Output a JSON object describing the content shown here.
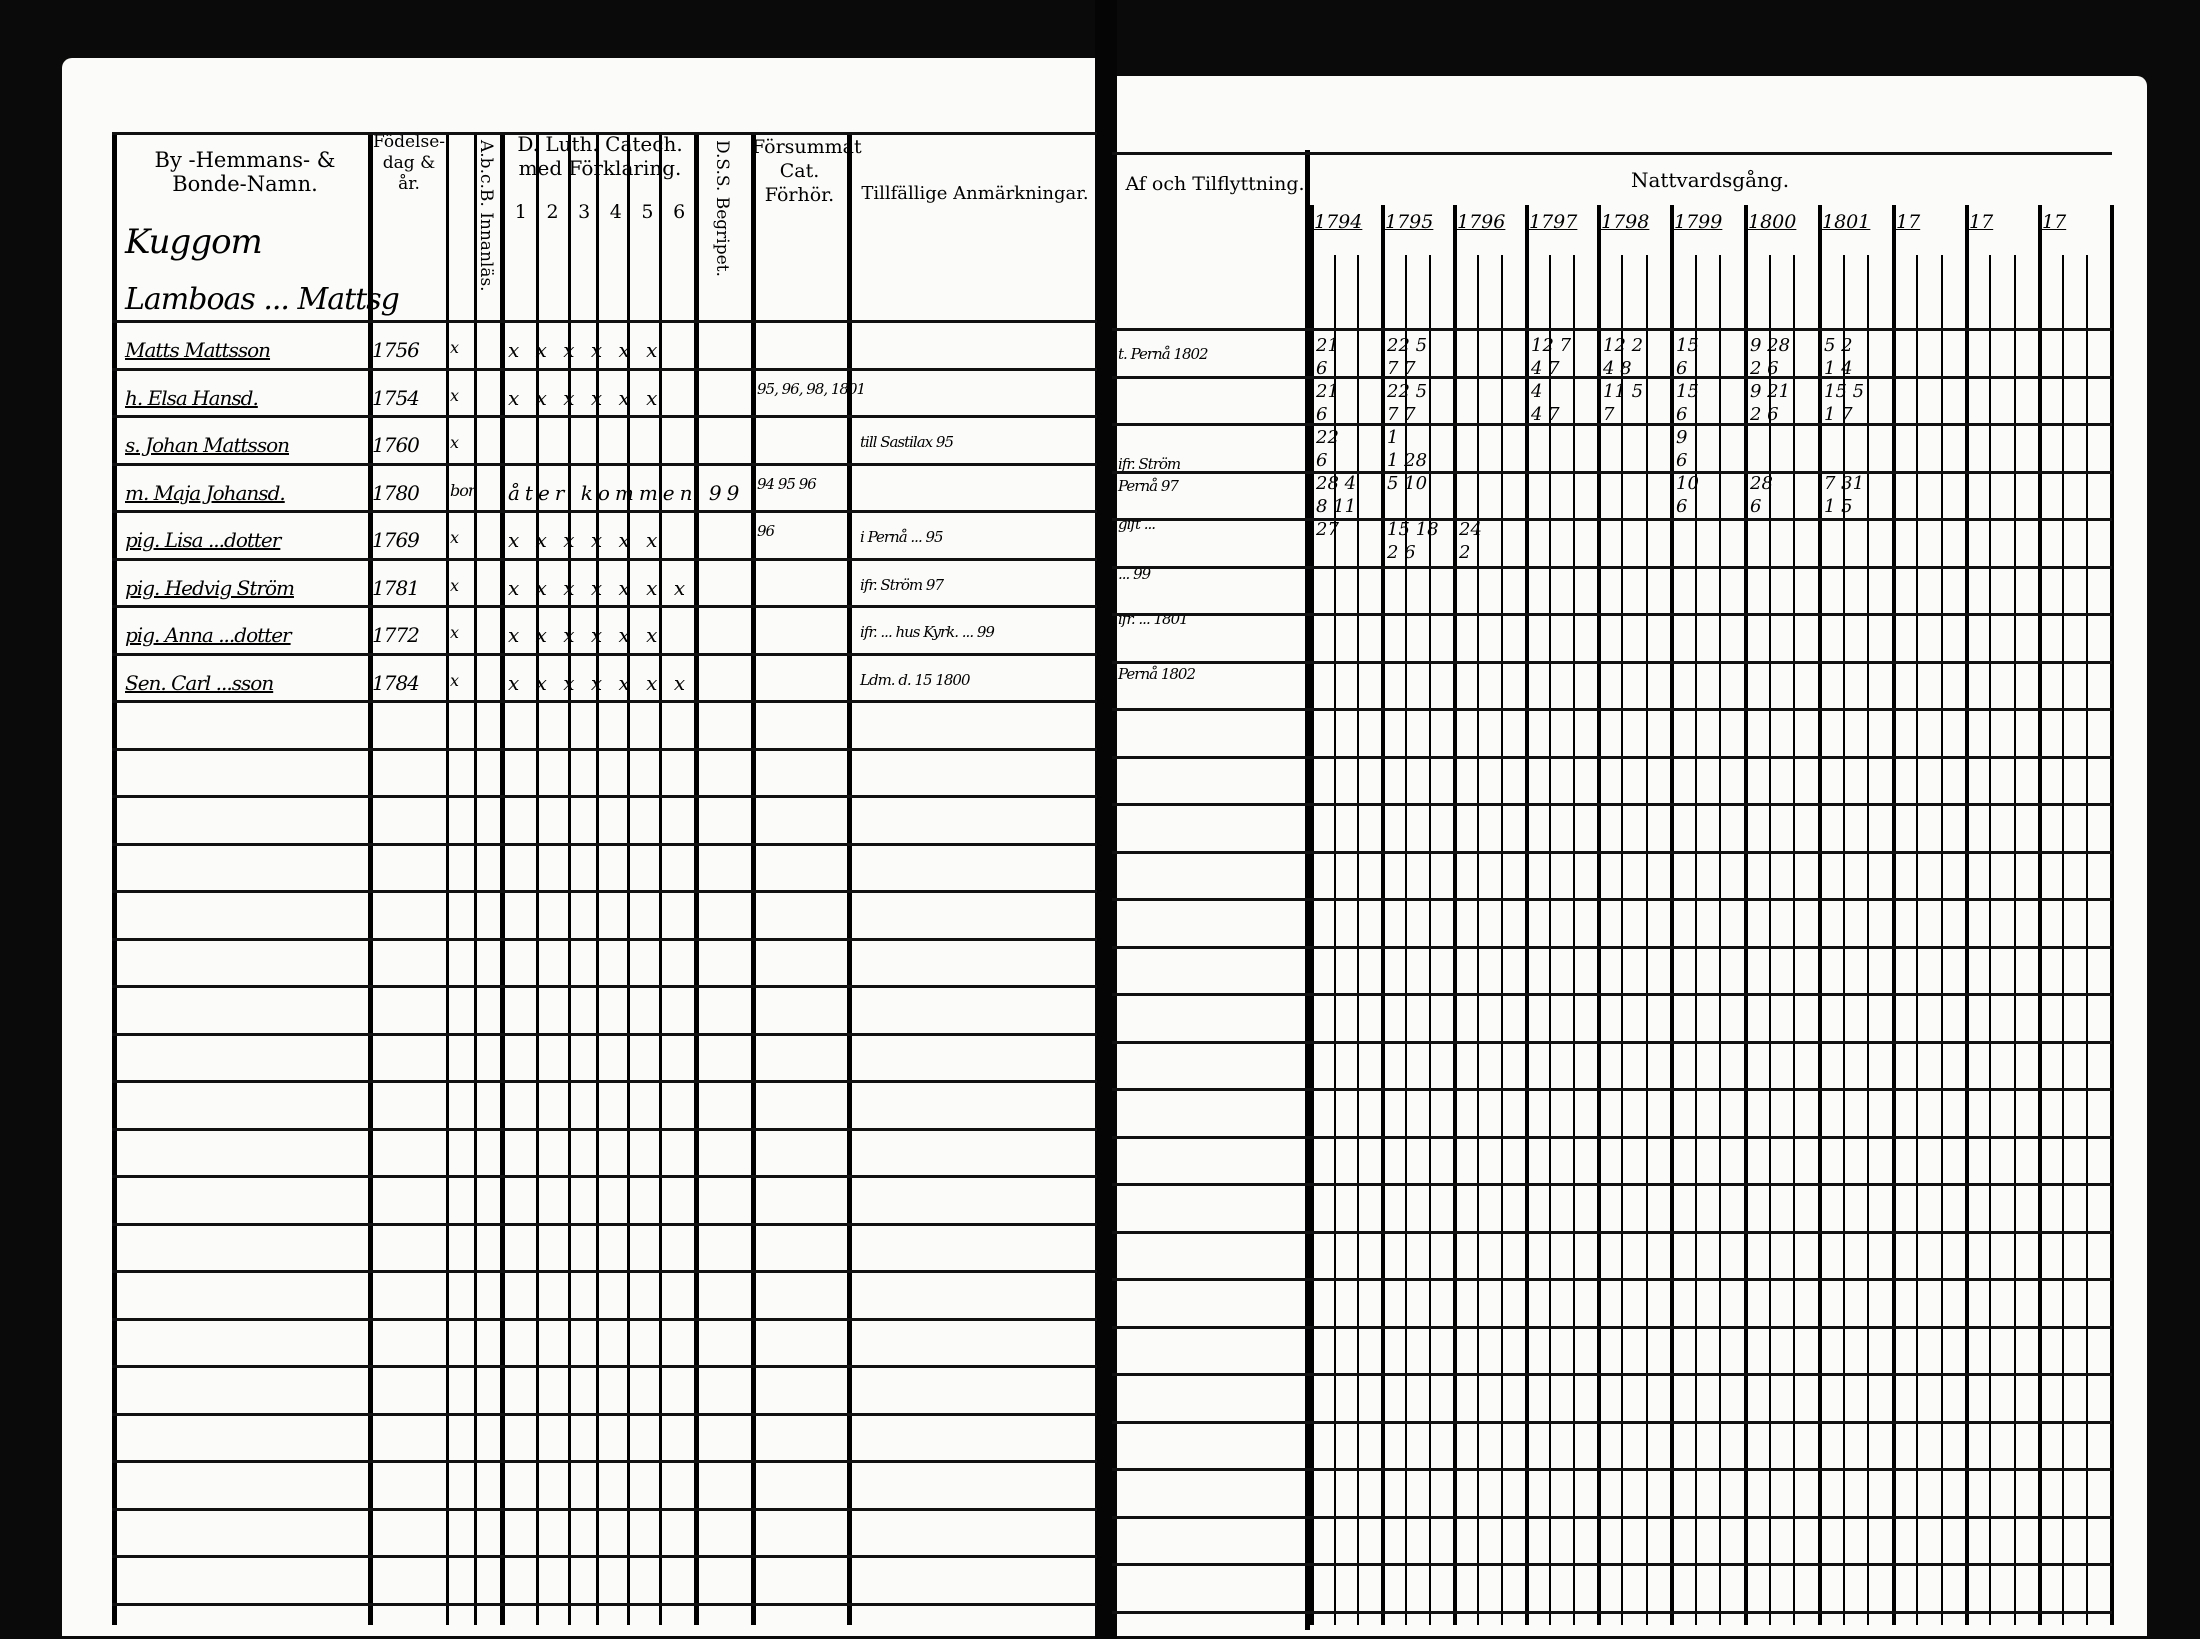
{
  "left_page": {
    "headers": {
      "name": "By -Hemmans- & Bonde-Namn.",
      "birth": "Födelse- dag & år.",
      "abc": "A.b.c.B. Innanläs.",
      "catechism": "D. Luth. Catech. med Förklaring.",
      "catechism_parts": [
        "1",
        "2",
        "3",
        "4",
        "5",
        "6"
      ],
      "dss": "D.S.S. Begripet.",
      "missed": "Försummat Cat. Förhör.",
      "remarks": "Tillfällige Anmärkningar."
    },
    "village": "Kuggom",
    "farm": "Lamboas ... Mattsg",
    "entries": [
      {
        "name": "Matts Mattsson",
        "born": "1756",
        "abc": "x",
        "cat": "x x x x x x",
        "missed": "",
        "remark": ""
      },
      {
        "name": "h. Elsa Hansd.",
        "born": "1754",
        "abc": "x",
        "cat": "x x x x x x",
        "missed": "95, 96, 98, 1801",
        "remark": ""
      },
      {
        "name": "s. Johan Mattsson",
        "born": "1760",
        "abc": "x",
        "cat": "",
        "missed": "",
        "remark": "till Sastilax 95"
      },
      {
        "name": "m. Maja Johansd.",
        "born": "1780",
        "abc": "bor",
        "cat": "åter kommen 99",
        "missed": "94 95 96",
        "remark": ""
      },
      {
        "name": "pig. Lisa ...dotter",
        "born": "1769",
        "abc": "x",
        "cat": "x x x x x x",
        "missed": "96",
        "remark": "i Pernå ... 95"
      },
      {
        "name": "pig. Hedvig Ström",
        "born": "1781",
        "abc": "x",
        "cat": "x x x x x x x",
        "missed": "",
        "remark": "ifr. Ström 97"
      },
      {
        "name": "pig. Anna ...dotter",
        "born": "1772",
        "abc": "x",
        "cat": "x x x x x x",
        "missed": "",
        "remark": "ifr. ... hus Kyrk. ... 99"
      },
      {
        "name": "Sen. Carl ...sson",
        "born": "1784",
        "abc": "x",
        "cat": "x x x x x x x",
        "missed": "",
        "remark": "Ldm. d. 15 1800"
      }
    ]
  },
  "right_page": {
    "headers": {
      "moving": "Af och Tilflyttning.",
      "communion": "Nattvardsgång.",
      "years": [
        "1794",
        "1795",
        "1796",
        "1797",
        "1798",
        "1799",
        "1800",
        "1801",
        "17",
        "17",
        "17"
      ]
    },
    "moving_entries": [
      "t. Pernå 1802",
      "ifr. Ström",
      "Pernå 97",
      "gift ... ",
      "... 99",
      "ifr. ... 1801",
      "Pernå 1802"
    ],
    "communion_marks": [
      [
        "21",
        "22 5",
        "",
        "12 7",
        "12 2",
        "15",
        "9 28",
        "5 2"
      ],
      [
        "6",
        "7 7",
        "",
        "4 7",
        "4 8",
        "6",
        "2 6",
        "1 4"
      ],
      [
        "21",
        "22 5",
        "",
        "4",
        "11 5",
        "15",
        "9 21",
        "15 5"
      ],
      [
        "6",
        "7 7",
        "",
        "4 7",
        "7",
        "6",
        "2 6",
        "1 7"
      ],
      [
        "22",
        "1",
        "",
        "",
        "",
        "9",
        "",
        ""
      ],
      [
        "6",
        "1 28",
        "",
        "",
        "",
        "6",
        "",
        ""
      ],
      [
        "28 4",
        "5 10",
        "",
        "",
        "",
        "10",
        "28",
        "7 31"
      ],
      [
        "8 11",
        "",
        "",
        "",
        "",
        "6",
        "6",
        "1 5"
      ],
      [
        "27",
        "15 18",
        "24",
        "",
        "",
        "",
        "",
        ""
      ],
      [
        "",
        "2 6",
        "2",
        "",
        "",
        "",
        "",
        ""
      ]
    ]
  },
  "colors": {
    "paper": "#fbfbf9",
    "ink": "#000000",
    "background": "#0a0a0a"
  }
}
